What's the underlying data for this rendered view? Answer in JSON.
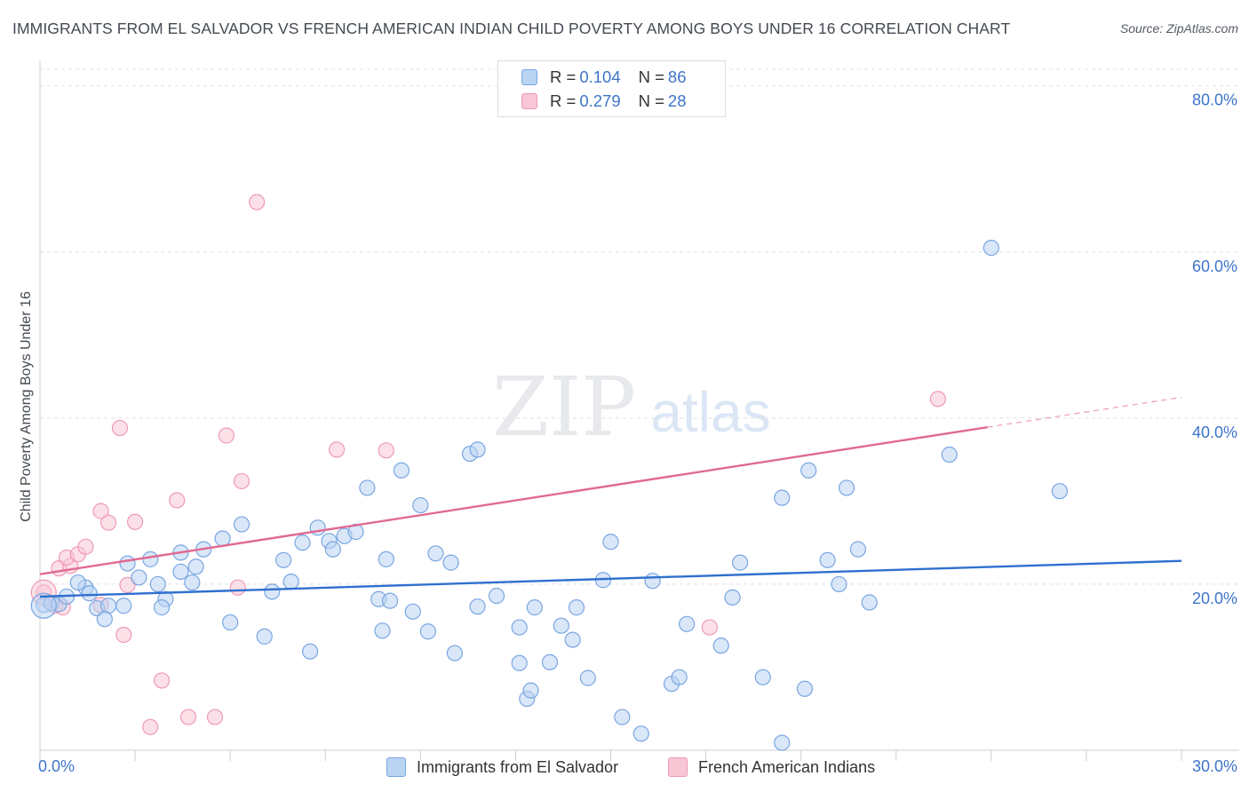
{
  "title": "IMMIGRANTS FROM EL SALVADOR VS FRENCH AMERICAN INDIAN CHILD POVERTY AMONG BOYS UNDER 16 CORRELATION CHART",
  "source": "Source: ZipAtlas.com",
  "watermark": {
    "zip": "ZIP",
    "atlas": "atlas"
  },
  "legend": {
    "blue": {
      "r_label": "R = ",
      "r_value": "0.104",
      "n_label": "N = ",
      "n_value": "86"
    },
    "pink": {
      "r_label": "R = ",
      "r_value": "0.279",
      "n_label": "N = ",
      "n_value": "28"
    }
  },
  "colors": {
    "blue_fill": "#b9d3f3",
    "blue_stroke": "#7aa6e3",
    "blue_line": "#2f6fcf",
    "pink_fill": "#f9c6d6",
    "pink_stroke": "#ef9ab5",
    "pink_line": "#e06a92",
    "tick_text": "#3d75c9",
    "grid": "#dcdfe4"
  },
  "chart_data": {
    "type": "scatter",
    "title": "IMMIGRANTS FROM EL SALVADOR VS FRENCH AMERICAN INDIAN CHILD POVERTY AMONG BOYS UNDER 16 CORRELATION CHART",
    "xlabel": "",
    "ylabel": "Child Poverty Among Boys Under 16",
    "xlim": [
      0,
      30
    ],
    "ylim": [
      0,
      82
    ],
    "x_tick_labels": [
      "0.0%",
      "30.0%"
    ],
    "y_ticks": [
      20,
      40,
      60,
      80
    ],
    "y_tick_labels": [
      "20.0%",
      "40.0%",
      "60.0%",
      "80.0%"
    ],
    "series": [
      {
        "name": "Immigrants from El Salvador",
        "color": "blue",
        "trend": {
          "x1": 0,
          "y1": 18.5,
          "x2": 30,
          "y2": 22.8
        },
        "points": [
          [
            0.1,
            17.5
          ],
          [
            0.3,
            17.7
          ],
          [
            0.5,
            17.6
          ],
          [
            0.7,
            18.5
          ],
          [
            1.2,
            19.6
          ],
          [
            1.0,
            20.2
          ],
          [
            1.5,
            17.1
          ],
          [
            1.8,
            17.4
          ],
          [
            1.7,
            15.8
          ],
          [
            2.2,
            17.4
          ],
          [
            2.6,
            20.8
          ],
          [
            2.3,
            22.5
          ],
          [
            3.1,
            20.0
          ],
          [
            3.3,
            18.2
          ],
          [
            3.7,
            21.5
          ],
          [
            2.9,
            23.0
          ],
          [
            3.7,
            23.8
          ],
          [
            4.1,
            22.1
          ],
          [
            4.3,
            24.2
          ],
          [
            4.0,
            20.2
          ],
          [
            5.0,
            15.4
          ],
          [
            5.3,
            27.2
          ],
          [
            5.9,
            13.7
          ],
          [
            6.4,
            22.9
          ],
          [
            6.6,
            20.3
          ],
          [
            7.1,
            11.9
          ],
          [
            6.9,
            25.0
          ],
          [
            7.6,
            25.2
          ],
          [
            7.7,
            24.2
          ],
          [
            8.0,
            25.8
          ],
          [
            8.3,
            26.3
          ],
          [
            8.9,
            18.2
          ],
          [
            9.0,
            14.4
          ],
          [
            8.6,
            31.6
          ],
          [
            9.1,
            23.0
          ],
          [
            9.5,
            33.7
          ],
          [
            9.2,
            18.0
          ],
          [
            10.0,
            29.5
          ],
          [
            10.4,
            23.7
          ],
          [
            10.2,
            14.3
          ],
          [
            10.8,
            22.6
          ],
          [
            10.9,
            11.7
          ],
          [
            11.3,
            35.7
          ],
          [
            11.5,
            36.2
          ],
          [
            11.5,
            17.3
          ],
          [
            12.0,
            18.6
          ],
          [
            12.6,
            14.8
          ],
          [
            12.6,
            10.5
          ],
          [
            12.8,
            6.2
          ],
          [
            12.9,
            7.2
          ],
          [
            13.0,
            17.2
          ],
          [
            13.4,
            10.6
          ],
          [
            13.7,
            15.0
          ],
          [
            14.0,
            13.3
          ],
          [
            14.1,
            17.2
          ],
          [
            14.4,
            8.7
          ],
          [
            14.8,
            20.5
          ],
          [
            15.0,
            25.1
          ],
          [
            15.3,
            4.0
          ],
          [
            15.8,
            2.0
          ],
          [
            16.1,
            20.4
          ],
          [
            16.6,
            8.0
          ],
          [
            16.8,
            8.8
          ],
          [
            17.0,
            15.2
          ],
          [
            17.9,
            12.6
          ],
          [
            18.2,
            18.4
          ],
          [
            18.4,
            22.6
          ],
          [
            19.0,
            8.8
          ],
          [
            19.5,
            30.4
          ],
          [
            20.1,
            7.4
          ],
          [
            20.2,
            33.7
          ],
          [
            20.7,
            22.9
          ],
          [
            21.0,
            20.0
          ],
          [
            21.2,
            31.6
          ],
          [
            21.5,
            24.2
          ],
          [
            21.8,
            17.8
          ],
          [
            19.5,
            0.9
          ],
          [
            25.0,
            60.5
          ],
          [
            23.9,
            35.6
          ],
          [
            26.8,
            31.2
          ],
          [
            3.2,
            17.2
          ],
          [
            4.8,
            25.5
          ],
          [
            6.1,
            19.1
          ],
          [
            7.3,
            26.8
          ],
          [
            1.3,
            18.9
          ],
          [
            9.8,
            16.7
          ]
        ]
      },
      {
        "name": "French American Indians",
        "color": "pink",
        "trend": {
          "x1": 0,
          "y1": 21.2,
          "x2": 24.9,
          "y2": 38.9,
          "dash_x2": 30,
          "dash_y2": 42.5
        },
        "points": [
          [
            0.1,
            19.0
          ],
          [
            0.4,
            17.4
          ],
          [
            0.5,
            21.9
          ],
          [
            0.8,
            22.2
          ],
          [
            0.7,
            23.2
          ],
          [
            1.0,
            23.6
          ],
          [
            1.2,
            24.5
          ],
          [
            1.6,
            17.5
          ],
          [
            1.6,
            28.8
          ],
          [
            1.8,
            27.4
          ],
          [
            2.1,
            38.8
          ],
          [
            2.2,
            13.9
          ],
          [
            2.3,
            19.9
          ],
          [
            2.5,
            27.5
          ],
          [
            2.9,
            2.8
          ],
          [
            3.2,
            8.4
          ],
          [
            3.6,
            30.1
          ],
          [
            3.9,
            4.0
          ],
          [
            4.6,
            4.0
          ],
          [
            4.9,
            37.9
          ],
          [
            5.2,
            19.6
          ],
          [
            5.3,
            32.4
          ],
          [
            5.7,
            66.0
          ],
          [
            7.8,
            36.2
          ],
          [
            9.1,
            36.1
          ],
          [
            17.6,
            14.8
          ],
          [
            23.6,
            42.3
          ],
          [
            0.6,
            17.2
          ]
        ]
      }
    ]
  }
}
